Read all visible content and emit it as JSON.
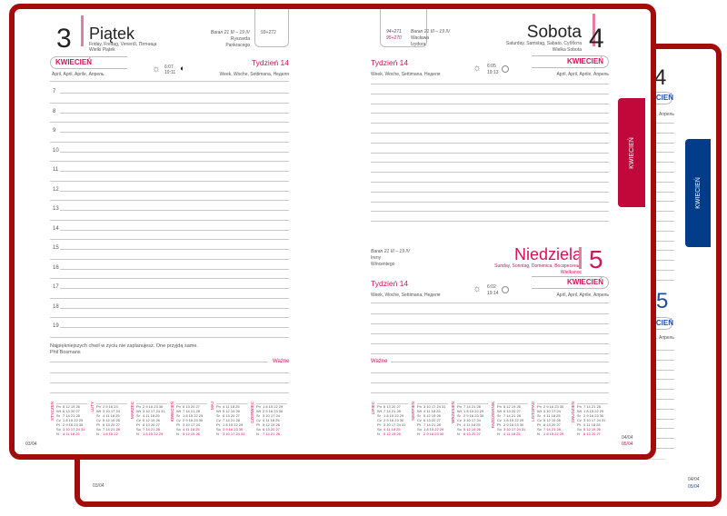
{
  "colors": {
    "binding": "#a30c0c",
    "accent": "#d1145a",
    "blue": "#1f4e9c",
    "tab_red": "#c0093a",
    "tab_blue": "#003c88"
  },
  "left_page": {
    "day_number": "3",
    "day_name": "Piątek",
    "day_translations": "Friday, Freitag, Venerdì, Пятница",
    "holiday": "Wielki Piątek",
    "zodiac": "Baran 21 III – 19 IV",
    "names": [
      "Ryszarda",
      "Pankracego"
    ],
    "day_count": "93+272",
    "month": "KWIECIEŃ",
    "month_translations": "April, April, Aprile, Апрель",
    "sunrise": "6:07",
    "sunset": "19:11",
    "week": "Tydzień 14",
    "week_translations": "Week, Woche, Settimana, Неделя",
    "hours": [
      "7",
      "8",
      "9",
      "10",
      "11",
      "12",
      "13",
      "14",
      "15",
      "16",
      "17",
      "18",
      "19"
    ],
    "quote": "Najpiękniejszych chwil w życiu nie zaplanujesz. One przyjdą same.",
    "quote_author": "Phil Bosmans",
    "important": "Ważne",
    "page_date": "03/04"
  },
  "right_page": {
    "day_counts": [
      "94+271",
      "95+270"
    ],
    "sat": {
      "zodiac": "Baran 21 III – 19 IV",
      "names": [
        "Wacława",
        "Izydora"
      ],
      "day_name": "Sobota",
      "day_number": "4",
      "day_translations": "Saturday, Samstag, Sabato, Суббота",
      "holiday": "Wielka Sobota",
      "week": "Tydzień 14",
      "week_translations": "Week, Woche, Settimana, Неделя",
      "sunrise": "6:05",
      "sunset": "19:13",
      "month": "KWIECIEŃ",
      "month_translations": "April, April, Aprile, Апрель"
    },
    "sun": {
      "zodiac": "Baran 21 III – 19 IV",
      "names": [
        "Ireny",
        "Wincentego"
      ],
      "day_name": "Niedziela",
      "day_number": "5",
      "day_translations": "Sunday, Sonntag, Domenica, Воскресенье",
      "holiday": "Wielkanoc",
      "week": "Tydzień 14",
      "week_translations": "Week, Woche, Settimana, Неделя",
      "sunrise": "6:02",
      "sunset": "19:14",
      "month": "KWIECIEŃ",
      "month_translations": "April, April, Aprile, Апрель"
    },
    "important": "Ważne",
    "page_dates": [
      "04/04",
      "05/04"
    ]
  },
  "tabs": {
    "front": "KWIECIEŃ",
    "back": "KWIECIEŃ"
  },
  "back_book": {
    "day_number_top": "4",
    "day_number_bottom": "5",
    "month": "KWIECIEŃ",
    "month_translations": "April, April, Aprile, Апрель",
    "page_date_left": "03/04",
    "page_dates_right": [
      "04/04",
      "05/04"
    ]
  },
  "weekdays": [
    "Pn",
    "Wt",
    "Śr",
    "Cz",
    "Pt",
    "So",
    "N"
  ],
  "mini_calendars_left": [
    {
      "month": "STYCZEŃ",
      "rows": [
        "5 12 19 26",
        "6 13 20 27",
        "7 14 21 28",
        "1 8 15 22 29",
        "2 9 16 23 30",
        "3 10 17 24 31",
        "4 11 18 25"
      ]
    },
    {
      "month": "LUTY",
      "rows": [
        "2 9 16 23",
        "3 10 17 24",
        "4 11 18 25",
        "5 12 19 26",
        "6 13 20 27",
        "7 14 21 28",
        "1 8 15 22"
      ]
    },
    {
      "month": "MARZEC",
      "rows": [
        "2 9 16 23 30",
        "3 10 17 24 31",
        "4 11 18 25",
        "5 12 19 26",
        "6 13 20 27",
        "7 14 21 28",
        "1 8 15 22 29"
      ]
    },
    {
      "month": "KWIECIEŃ",
      "rows": [
        "6 13 20 27",
        "7 14 21 28",
        "1 8 15 22 29",
        "2 9 16 23 30",
        "3 10 17 24",
        "4 11 18 25",
        "5 12 19 26"
      ]
    },
    {
      "month": "MAJ",
      "rows": [
        "4 11 18 25",
        "5 12 19 26",
        "6 13 20 27",
        "7 14 21 28",
        "1 8 15 22 29",
        "2 9 16 23 30",
        "3 10 17 24 31"
      ]
    },
    {
      "month": "CZERWIEC",
      "rows": [
        "1 8 15 22 29",
        "2 9 16 23 30",
        "3 10 17 24",
        "4 11 18 25",
        "5 12 19 26",
        "6 13 20 27",
        "7 14 21 28"
      ]
    }
  ],
  "mini_calendars_right": [
    {
      "month": "LIPIEC",
      "rows": [
        "6 13 20 27",
        "7 14 21 28",
        "1 8 15 22 29",
        "2 9 16 23 30",
        "3 10 17 24 31",
        "4 11 18 25",
        "5 12 19 26"
      ]
    },
    {
      "month": "SIERPIEŃ",
      "rows": [
        "3 10 17 24 31",
        "4 11 18 25",
        "5 12 19 26",
        "6 13 20 27",
        "7 14 21 28",
        "1 8 15 22 29",
        "2 9 16 23 30"
      ]
    },
    {
      "month": "WRZESIEŃ",
      "rows": [
        "7 14 21 28",
        "1 8 15 22 29",
        "2 9 16 23 30",
        "3 10 17 24",
        "4 11 18 25",
        "5 12 19 26",
        "6 13 20 27"
      ]
    },
    {
      "month": "PAŹDZIERNIK",
      "rows": [
        "5 12 19 26",
        "6 13 20 27",
        "7 14 21 28",
        "1 8 15 22 29",
        "2 9 16 23 30",
        "3 10 17 24 31",
        "4 11 18 25"
      ]
    },
    {
      "month": "LISTOPAD",
      "rows": [
        "2 9 16 23 30",
        "3 10 17 24",
        "4 11 18 25",
        "5 12 19 26",
        "6 13 20 27",
        "7 14 21 28",
        "1 8 15 22 29"
      ]
    },
    {
      "month": "GRUDZIEŃ",
      "rows": [
        "7 14 21 28",
        "1 8 15 22 29",
        "2 9 16 23 30",
        "3 10 17 24 31",
        "4 11 18 25",
        "5 12 19 26",
        "6 13 20 27"
      ]
    }
  ]
}
